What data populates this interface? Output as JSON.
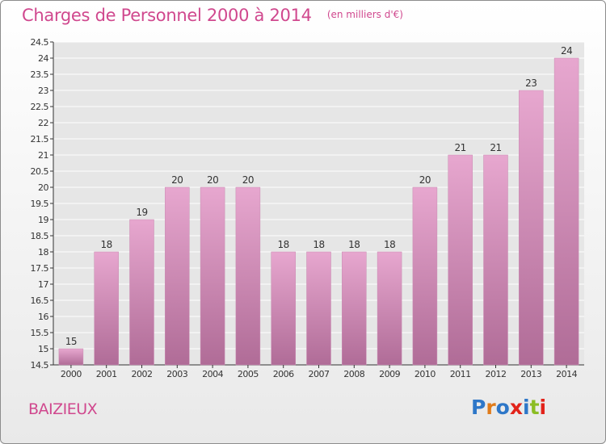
{
  "header": {
    "title": "Charges de Personnel 2000 à 2014",
    "subtitle": "(en milliers d'€)"
  },
  "footer": {
    "commune": "BAIZIEUX",
    "logo_text": "Proxiti",
    "logo_colors": [
      "#2e77c8",
      "#e07b1a",
      "#2e77c8",
      "#e2231a",
      "#2e77c8",
      "#8bbd24",
      "#e2231a"
    ]
  },
  "colors": {
    "bar_top": "#e7a7cf",
    "bar_bottom": "#b06c97",
    "accent": "#d0488e"
  },
  "chart_data": {
    "type": "bar",
    "categories": [
      "2000",
      "2001",
      "2002",
      "2003",
      "2004",
      "2005",
      "2006",
      "2007",
      "2008",
      "2009",
      "2010",
      "2011",
      "2012",
      "2013",
      "2014"
    ],
    "values": [
      15,
      18,
      19,
      20,
      20,
      20,
      18,
      18,
      18,
      18,
      20,
      21,
      21,
      23,
      24
    ],
    "data_labels": [
      "15",
      "18",
      "19",
      "20",
      "20",
      "20",
      "18",
      "18",
      "18",
      "18",
      "20",
      "21",
      "21",
      "23",
      "24"
    ],
    "yticks": [
      "14.5",
      "15",
      "15.5",
      "16",
      "16.5",
      "17",
      "17.5",
      "18",
      "18.5",
      "19",
      "19.5",
      "20",
      "20.5",
      "21",
      "21.5",
      "22",
      "22.5",
      "23",
      "23.5",
      "24",
      "24.5"
    ],
    "ylim": [
      14.5,
      24.5
    ],
    "grid": true,
    "title": "Charges de Personnel 2000 à 2014",
    "xlabel": "",
    "ylabel": ""
  }
}
